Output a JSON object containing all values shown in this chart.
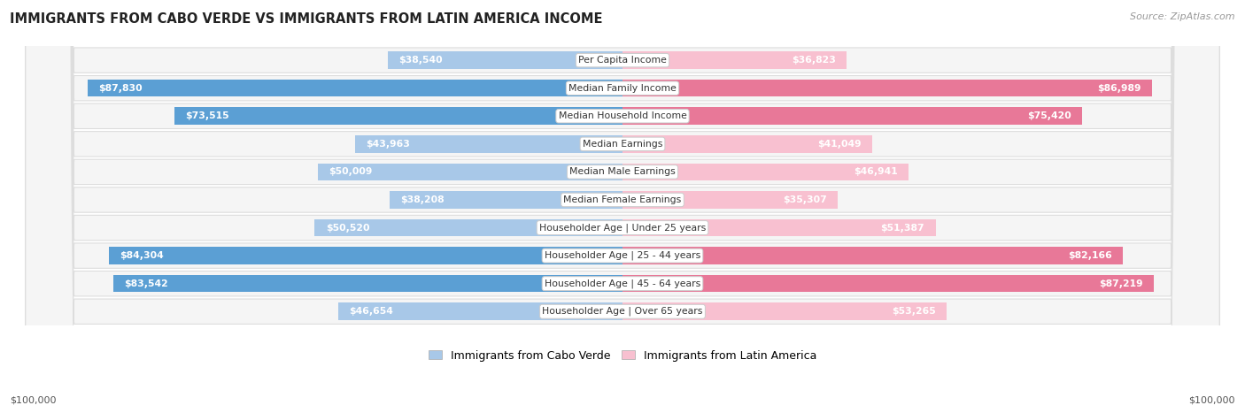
{
  "title": "IMMIGRANTS FROM CABO VERDE VS IMMIGRANTS FROM LATIN AMERICA INCOME",
  "source": "Source: ZipAtlas.com",
  "categories": [
    "Per Capita Income",
    "Median Family Income",
    "Median Household Income",
    "Median Earnings",
    "Median Male Earnings",
    "Median Female Earnings",
    "Householder Age | Under 25 years",
    "Householder Age | 25 - 44 years",
    "Householder Age | 45 - 64 years",
    "Householder Age | Over 65 years"
  ],
  "cabo_verde_values": [
    38540,
    87830,
    73515,
    43963,
    50009,
    38208,
    50520,
    84304,
    83542,
    46654
  ],
  "latin_america_values": [
    36823,
    86989,
    75420,
    41049,
    46941,
    35307,
    51387,
    82166,
    87219,
    53265
  ],
  "cabo_verde_labels": [
    "$38,540",
    "$87,830",
    "$73,515",
    "$43,963",
    "$50,009",
    "$38,208",
    "$50,520",
    "$84,304",
    "$83,542",
    "$46,654"
  ],
  "latin_america_labels": [
    "$36,823",
    "$86,989",
    "$75,420",
    "$41,049",
    "$46,941",
    "$35,307",
    "$51,387",
    "$82,166",
    "$87,219",
    "$53,265"
  ],
  "cabo_verde_color_light": "#a8c8e8",
  "cabo_verde_color_dark": "#5b9fd4",
  "latin_america_color_light": "#f8c0d0",
  "latin_america_color_dark": "#e87898",
  "threshold_dark": 55000,
  "max_value": 100000,
  "legend_cabo_verde": "Immigrants from Cabo Verde",
  "legend_latin_america": "Immigrants from Latin America",
  "background_color": "#ffffff",
  "row_bg_color": "#f0f0f0",
  "label_color_outside": "#555555",
  "label_color_inside": "#ffffff",
  "xlabel_left": "$100,000",
  "xlabel_right": "$100,000",
  "threshold_inside": 20000
}
